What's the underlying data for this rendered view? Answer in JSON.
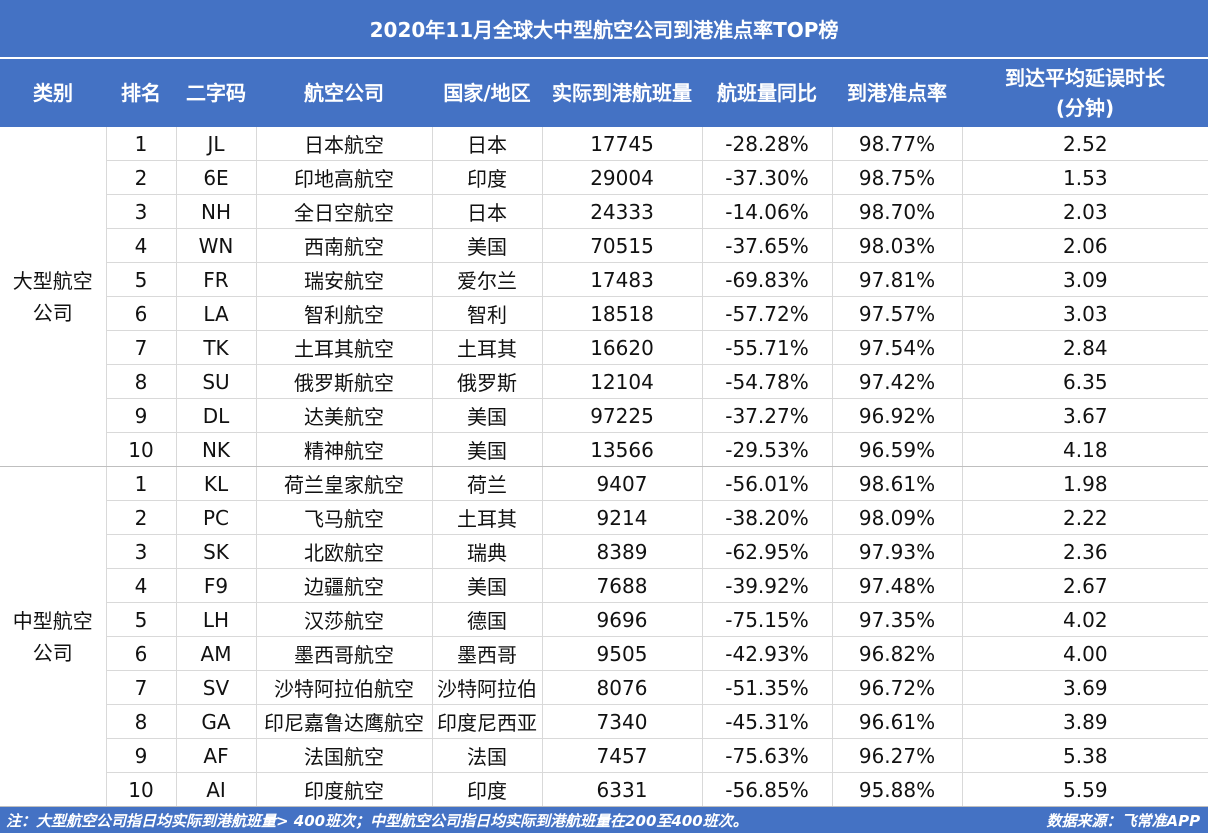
{
  "title": "2020年11月全球大中型航空公司到港准点率TOP榜",
  "headers": {
    "category": "类别",
    "rank": "排名",
    "code": "二字码",
    "airline": "航空公司",
    "country": "国家/地区",
    "flights": "实际到港航班量",
    "yoy": "航班量同比",
    "ontime": "到港准点率",
    "delay_line1": "到达平均延误时长",
    "delay_line2": "(分钟)"
  },
  "groups": [
    {
      "category": "大型航空公司",
      "rows": [
        {
          "rank": "1",
          "code": "JL",
          "airline": "日本航空",
          "country": "日本",
          "flights": "17745",
          "yoy": "-28.28%",
          "ontime": "98.77%",
          "delay": "2.52"
        },
        {
          "rank": "2",
          "code": "6E",
          "airline": "印地高航空",
          "country": "印度",
          "flights": "29004",
          "yoy": "-37.30%",
          "ontime": "98.75%",
          "delay": "1.53"
        },
        {
          "rank": "3",
          "code": "NH",
          "airline": "全日空航空",
          "country": "日本",
          "flights": "24333",
          "yoy": "-14.06%",
          "ontime": "98.70%",
          "delay": "2.03"
        },
        {
          "rank": "4",
          "code": "WN",
          "airline": "西南航空",
          "country": "美国",
          "flights": "70515",
          "yoy": "-37.65%",
          "ontime": "98.03%",
          "delay": "2.06"
        },
        {
          "rank": "5",
          "code": "FR",
          "airline": "瑞安航空",
          "country": "爱尔兰",
          "flights": "17483",
          "yoy": "-69.83%",
          "ontime": "97.81%",
          "delay": "3.09"
        },
        {
          "rank": "6",
          "code": "LA",
          "airline": "智利航空",
          "country": "智利",
          "flights": "18518",
          "yoy": "-57.72%",
          "ontime": "97.57%",
          "delay": "3.03"
        },
        {
          "rank": "7",
          "code": "TK",
          "airline": "土耳其航空",
          "country": "土耳其",
          "flights": "16620",
          "yoy": "-55.71%",
          "ontime": "97.54%",
          "delay": "2.84"
        },
        {
          "rank": "8",
          "code": "SU",
          "airline": "俄罗斯航空",
          "country": "俄罗斯",
          "flights": "12104",
          "yoy": "-54.78%",
          "ontime": "97.42%",
          "delay": "6.35"
        },
        {
          "rank": "9",
          "code": "DL",
          "airline": "达美航空",
          "country": "美国",
          "flights": "97225",
          "yoy": "-37.27%",
          "ontime": "96.92%",
          "delay": "3.67"
        },
        {
          "rank": "10",
          "code": "NK",
          "airline": "精神航空",
          "country": "美国",
          "flights": "13566",
          "yoy": "-29.53%",
          "ontime": "96.59%",
          "delay": "4.18"
        }
      ]
    },
    {
      "category": "中型航空公司",
      "rows": [
        {
          "rank": "1",
          "code": "KL",
          "airline": "荷兰皇家航空",
          "country": "荷兰",
          "flights": "9407",
          "yoy": "-56.01%",
          "ontime": "98.61%",
          "delay": "1.98"
        },
        {
          "rank": "2",
          "code": "PC",
          "airline": "飞马航空",
          "country": "土耳其",
          "flights": "9214",
          "yoy": "-38.20%",
          "ontime": "98.09%",
          "delay": "2.22"
        },
        {
          "rank": "3",
          "code": "SK",
          "airline": "北欧航空",
          "country": "瑞典",
          "flights": "8389",
          "yoy": "-62.95%",
          "ontime": "97.93%",
          "delay": "2.36"
        },
        {
          "rank": "4",
          "code": "F9",
          "airline": "边疆航空",
          "country": "美国",
          "flights": "7688",
          "yoy": "-39.92%",
          "ontime": "97.48%",
          "delay": "2.67"
        },
        {
          "rank": "5",
          "code": "LH",
          "airline": "汉莎航空",
          "country": "德国",
          "flights": "9696",
          "yoy": "-75.15%",
          "ontime": "97.35%",
          "delay": "4.02"
        },
        {
          "rank": "6",
          "code": "AM",
          "airline": "墨西哥航空",
          "country": "墨西哥",
          "flights": "9505",
          "yoy": "-42.93%",
          "ontime": "96.82%",
          "delay": "4.00"
        },
        {
          "rank": "7",
          "code": "SV",
          "airline": "沙特阿拉伯航空",
          "country": "沙特阿拉伯",
          "flights": "8076",
          "yoy": "-51.35%",
          "ontime": "96.72%",
          "delay": "3.69"
        },
        {
          "rank": "8",
          "code": "GA",
          "airline": "印尼嘉鲁达鹰航空",
          "country": "印度尼西亚",
          "flights": "7340",
          "yoy": "-45.31%",
          "ontime": "96.61%",
          "delay": "3.89"
        },
        {
          "rank": "9",
          "code": "AF",
          "airline": "法国航空",
          "country": "法国",
          "flights": "7457",
          "yoy": "-75.63%",
          "ontime": "96.27%",
          "delay": "5.38"
        },
        {
          "rank": "10",
          "code": "AI",
          "airline": "印度航空",
          "country": "印度",
          "flights": "6331",
          "yoy": "-56.85%",
          "ontime": "95.88%",
          "delay": "5.59"
        }
      ]
    }
  ],
  "footer": {
    "note": "注：大型航空公司指日均实际到港航班量> 400班次；中型航空公司指日均实际到港航班量在200至400班次。",
    "source": "数据来源：飞常准APP"
  },
  "colors": {
    "header_bg": "#4472c4",
    "header_text": "#ffffff",
    "grid": "#d9d9d9"
  }
}
